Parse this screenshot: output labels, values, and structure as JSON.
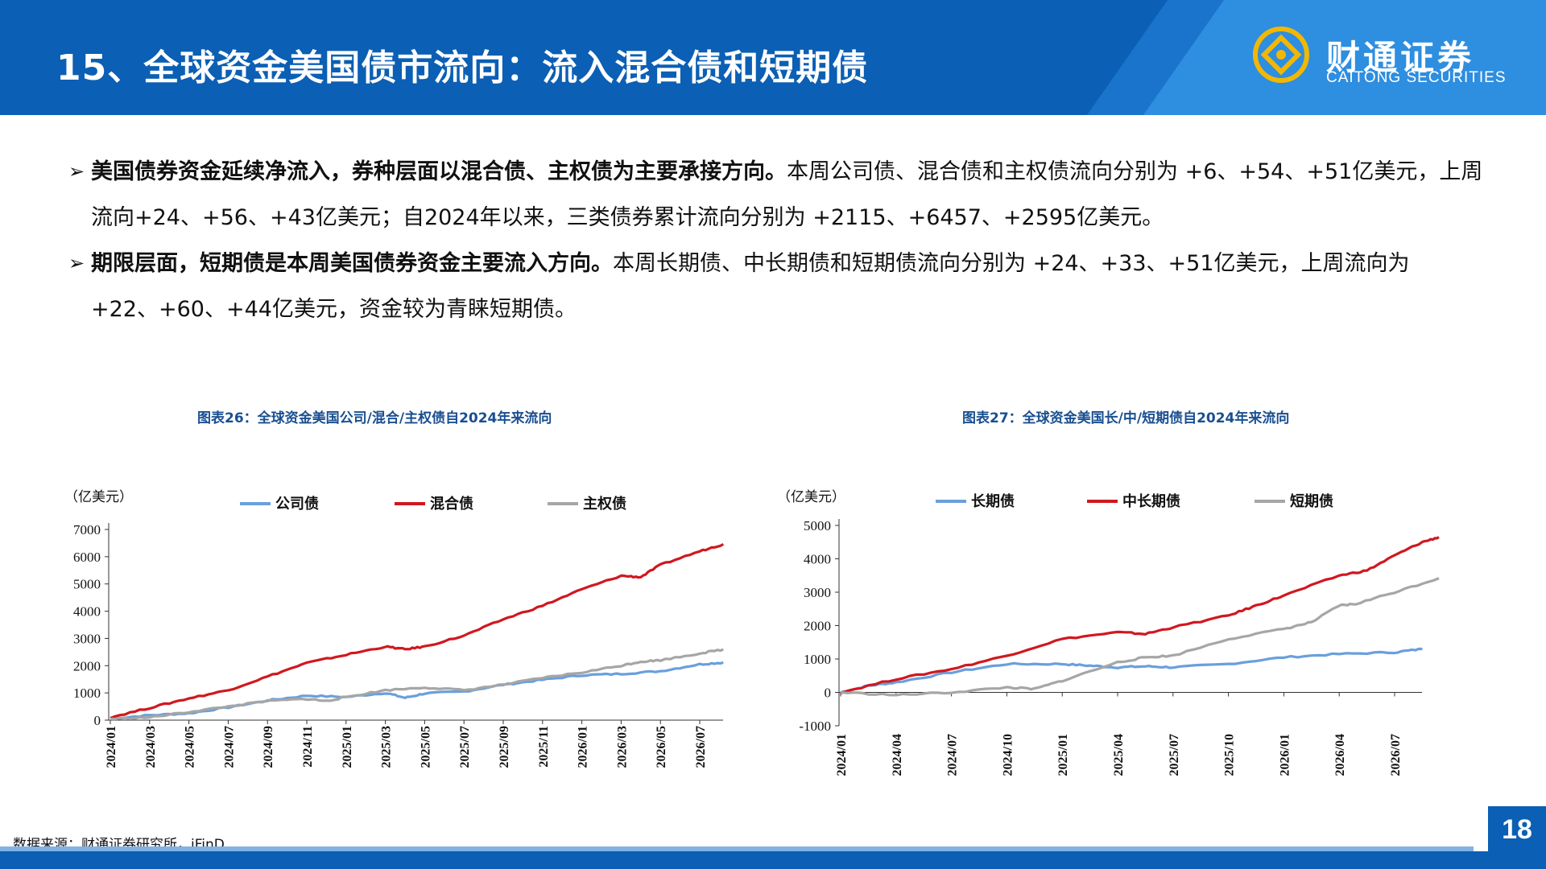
{
  "header": {
    "title": "15、全球资金美国债市流向：流入混合债和短期债",
    "logo_cn": "财通证券",
    "logo_en": "CAITONG SECURITIES",
    "colors": {
      "primary": "#0b5fb4",
      "accent": "#2e8ee0",
      "logo_gold": "#f2b705"
    }
  },
  "bullets": [
    {
      "strong": "美国债券资金延续净流入，券种层面以混合债、主权债为主要承接方向。",
      "text": "本周公司债、混合债和主权债流向分别为 +6、+54、+51亿美元，上周流向+24、+56、+43亿美元；自2024年以来，三类债券累计流向分别为 +2115、+6457、+2595亿美元。"
    },
    {
      "strong": "期限层面，短期债是本周美国债券资金主要流入方向。",
      "text": "本周长期债、中长期债和短期债流向分别为 +24、+33、+51亿美元，上周流向为 +22、+60、+44亿美元，资金较为青睐短期债。"
    }
  ],
  "charts": {
    "left_title": "图表26：全球资金美国公司/混合/主权债自2024年来流向",
    "right_title": "图表27：全球资金美国长/中/短期债自2024年来流向"
  },
  "chart_data": [
    {
      "type": "line",
      "unit": "（亿美元）",
      "x": [
        "2024/01",
        "2024/03",
        "2024/05",
        "2024/07",
        "2024/09",
        "2024/11",
        "2025/01",
        "2025/03",
        "2025/05",
        "2025/07",
        "2025/09",
        "2025/11",
        "2026/01",
        "2026/03",
        "2026/05",
        "2026/07"
      ],
      "ylim": [
        0,
        7000
      ],
      "yticks": [
        0,
        1000,
        2000,
        3000,
        4000,
        5000,
        6000,
        7000
      ],
      "series": [
        {
          "name": "公司债",
          "color": "#6a9fdc",
          "values": [
            [
              0,
              50
            ],
            [
              1,
              180
            ],
            [
              2,
              250
            ],
            [
              3,
              470
            ],
            [
              4,
              720
            ],
            [
              5,
              900
            ],
            [
              6,
              850
            ],
            [
              7,
              1000
            ],
            [
              7.5,
              820
            ],
            [
              8,
              980
            ],
            [
              9,
              1050
            ],
            [
              10,
              1300
            ],
            [
              11,
              1480
            ],
            [
              12,
              1650
            ],
            [
              13,
              1700
            ],
            [
              14,
              1800
            ],
            [
              15,
              2050
            ],
            [
              15.6,
              2115
            ]
          ]
        },
        {
          "name": "混合债",
          "color": "#d0181f",
          "values": [
            [
              0,
              100
            ],
            [
              1,
              450
            ],
            [
              2,
              800
            ],
            [
              3,
              1100
            ],
            [
              4,
              1600
            ],
            [
              5,
              2100
            ],
            [
              6,
              2400
            ],
            [
              7,
              2700
            ],
            [
              7.5,
              2600
            ],
            [
              8,
              2700
            ],
            [
              9,
              3100
            ],
            [
              10,
              3700
            ],
            [
              11,
              4200
            ],
            [
              12,
              4800
            ],
            [
              13,
              5300
            ],
            [
              13.5,
              5250
            ],
            [
              14,
              5700
            ],
            [
              15,
              6200
            ],
            [
              15.6,
              6457
            ]
          ]
        },
        {
          "name": "主权债",
          "color": "#a6a6a6",
          "values": [
            [
              0,
              50
            ],
            [
              1,
              100
            ],
            [
              2,
              300
            ],
            [
              3,
              500
            ],
            [
              4,
              700
            ],
            [
              5,
              780
            ],
            [
              5.5,
              700
            ],
            [
              6,
              850
            ],
            [
              7,
              1100
            ],
            [
              8,
              1200
            ],
            [
              9,
              1100
            ],
            [
              10,
              1300
            ],
            [
              11,
              1550
            ],
            [
              12,
              1750
            ],
            [
              13,
              2000
            ],
            [
              13.5,
              2150
            ],
            [
              14,
              2200
            ],
            [
              15,
              2450
            ],
            [
              15.6,
              2595
            ]
          ]
        }
      ]
    },
    {
      "type": "line",
      "unit": "（亿美元）",
      "x": [
        "2024/01",
        "2024/04",
        "2024/07",
        "2024/10",
        "2025/01",
        "2025/04",
        "2025/07",
        "2025/10",
        "2026/01",
        "2026/04",
        "2026/07"
      ],
      "ylim": [
        -1000,
        5000
      ],
      "yticks": [
        -1000,
        0,
        1000,
        2000,
        3000,
        4000,
        5000
      ],
      "series": [
        {
          "name": "长期债",
          "color": "#6a9fdc",
          "values": [
            [
              0,
              0
            ],
            [
              0.5,
              200
            ],
            [
              1,
              300
            ],
            [
              2,
              600
            ],
            [
              3,
              850
            ],
            [
              4,
              850
            ],
            [
              4.5,
              800
            ],
            [
              5,
              750
            ],
            [
              5.5,
              780
            ],
            [
              6,
              750
            ],
            [
              7,
              850
            ],
            [
              8,
              1050
            ],
            [
              9,
              1150
            ],
            [
              10,
              1200
            ],
            [
              10.5,
              1300
            ]
          ]
        },
        {
          "name": "中长期债",
          "color": "#d0181f",
          "values": [
            [
              0,
              0
            ],
            [
              1,
              400
            ],
            [
              2,
              700
            ],
            [
              3,
              1100
            ],
            [
              4,
              1600
            ],
            [
              5,
              1800
            ],
            [
              5.5,
              1750
            ],
            [
              6,
              1950
            ],
            [
              7,
              2300
            ],
            [
              7.5,
              2600
            ],
            [
              8,
              2900
            ],
            [
              9,
              3500
            ],
            [
              9.5,
              3650
            ],
            [
              10,
              4100
            ],
            [
              10.5,
              4500
            ],
            [
              10.8,
              4650
            ]
          ]
        },
        {
          "name": "短期债",
          "color": "#a6a6a6",
          "values": [
            [
              0,
              0
            ],
            [
              1,
              -80
            ],
            [
              2,
              0
            ],
            [
              3,
              150
            ],
            [
              3.5,
              100
            ],
            [
              4,
              350
            ],
            [
              5,
              900
            ],
            [
              5.5,
              1050
            ],
            [
              6,
              1100
            ],
            [
              7,
              1600
            ],
            [
              8,
              1900
            ],
            [
              8.5,
              2100
            ],
            [
              9,
              2600
            ],
            [
              9.3,
              2650
            ],
            [
              10,
              3000
            ],
            [
              10.8,
              3420
            ]
          ]
        }
      ]
    }
  ],
  "footer": {
    "source": "数据来源：财通证券研究所，iFinD",
    "page": "18"
  }
}
